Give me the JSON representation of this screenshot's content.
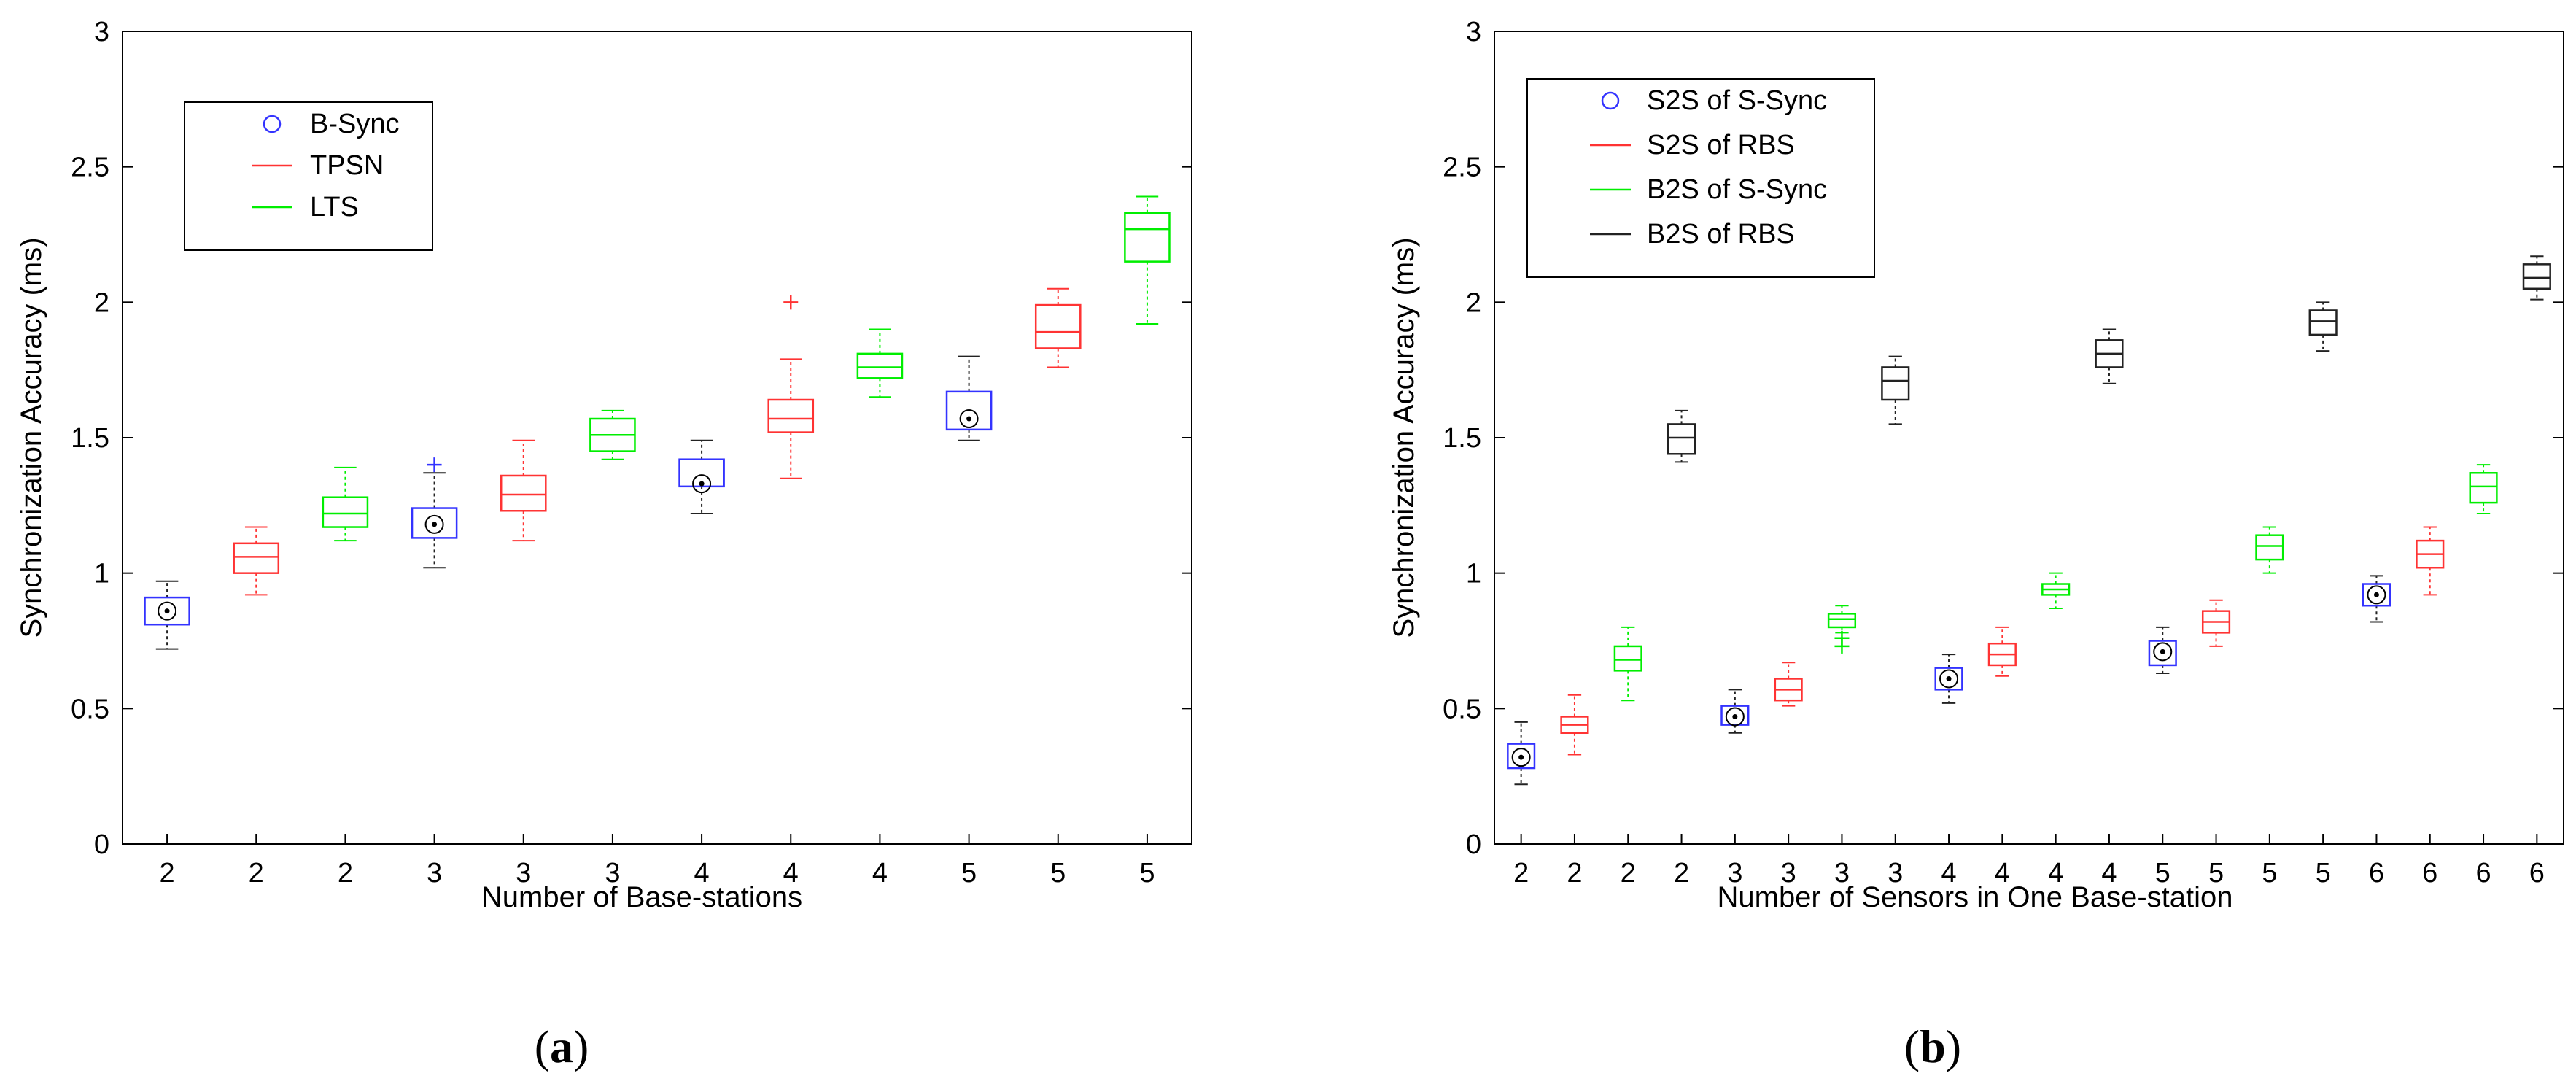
{
  "chart_data": [
    {
      "type": "boxplot",
      "caption_letter": "a",
      "xlabel": "Number of Base-stations",
      "ylabel": "Synchronization Accuracy (ms)",
      "ylim": [
        0,
        3
      ],
      "yticks": [
        0,
        0.5,
        1,
        1.5,
        2,
        2.5,
        3
      ],
      "ytick_labels": [
        "0",
        "0.5",
        "1",
        "1.5",
        "2",
        "2.5",
        "3"
      ],
      "categories": [
        "2",
        "2",
        "2",
        "3",
        "3",
        "3",
        "4",
        "4",
        "4",
        "5",
        "5",
        "5"
      ],
      "legend": [
        {
          "label": "B-Sync",
          "symbol": "circle",
          "color": "#3333ff"
        },
        {
          "label": "TPSN",
          "symbol": "line",
          "color": "#ff3333"
        },
        {
          "label": "LTS",
          "symbol": "line",
          "color": "#00ee00"
        }
      ],
      "boxes": [
        {
          "series": "B-Sync",
          "color": "#3333ff",
          "whisker_color": "#222222",
          "lo": 0.72,
          "q1": 0.81,
          "median": 0.86,
          "q3": 0.91,
          "hi": 0.97,
          "mean_marker": true,
          "outliers": []
        },
        {
          "series": "TPSN",
          "color": "#ff3333",
          "whisker_color": "#ff3333",
          "lo": 0.92,
          "q1": 1.0,
          "median": 1.06,
          "q3": 1.11,
          "hi": 1.17,
          "mean_marker": false,
          "outliers": []
        },
        {
          "series": "LTS",
          "color": "#00ee00",
          "whisker_color": "#00ee00",
          "lo": 1.12,
          "q1": 1.17,
          "median": 1.22,
          "q3": 1.28,
          "hi": 1.39,
          "mean_marker": false,
          "outliers": []
        },
        {
          "series": "B-Sync",
          "color": "#3333ff",
          "whisker_color": "#222222",
          "lo": 1.02,
          "q1": 1.13,
          "median": 1.18,
          "q3": 1.24,
          "hi": 1.37,
          "mean_marker": true,
          "outliers": [
            1.4
          ]
        },
        {
          "series": "TPSN",
          "color": "#ff3333",
          "whisker_color": "#ff3333",
          "lo": 1.12,
          "q1": 1.23,
          "median": 1.29,
          "q3": 1.36,
          "hi": 1.49,
          "mean_marker": false,
          "outliers": []
        },
        {
          "series": "LTS",
          "color": "#00ee00",
          "whisker_color": "#00ee00",
          "lo": 1.42,
          "q1": 1.45,
          "median": 1.51,
          "q3": 1.57,
          "hi": 1.6,
          "mean_marker": false,
          "outliers": []
        },
        {
          "series": "B-Sync",
          "color": "#3333ff",
          "whisker_color": "#222222",
          "lo": 1.22,
          "q1": 1.32,
          "median": 1.33,
          "q3": 1.42,
          "hi": 1.49,
          "mean_marker": true,
          "outliers": []
        },
        {
          "series": "TPSN",
          "color": "#ff3333",
          "whisker_color": "#ff3333",
          "lo": 1.35,
          "q1": 1.52,
          "median": 1.57,
          "q3": 1.64,
          "hi": 1.79,
          "mean_marker": false,
          "outliers": [
            2.0
          ]
        },
        {
          "series": "LTS",
          "color": "#00ee00",
          "whisker_color": "#00ee00",
          "lo": 1.65,
          "q1": 1.72,
          "median": 1.76,
          "q3": 1.81,
          "hi": 1.9,
          "mean_marker": false,
          "outliers": []
        },
        {
          "series": "B-Sync",
          "color": "#3333ff",
          "whisker_color": "#222222",
          "lo": 1.49,
          "q1": 1.53,
          "median": 1.57,
          "q3": 1.67,
          "hi": 1.8,
          "mean_marker": true,
          "outliers": []
        },
        {
          "series": "TPSN",
          "color": "#ff3333",
          "whisker_color": "#ff3333",
          "lo": 1.76,
          "q1": 1.83,
          "median": 1.89,
          "q3": 1.99,
          "hi": 2.05,
          "mean_marker": false,
          "outliers": []
        },
        {
          "series": "LTS",
          "color": "#00ee00",
          "whisker_color": "#00ee00",
          "lo": 1.92,
          "q1": 2.15,
          "median": 2.27,
          "q3": 2.33,
          "hi": 2.39,
          "mean_marker": false,
          "outliers": []
        }
      ]
    },
    {
      "type": "boxplot",
      "caption_letter": "b",
      "xlabel": "Number of Sensors in One Base-station",
      "ylabel": "Synchronization Accuracy (ms)",
      "ylim": [
        0,
        3
      ],
      "yticks": [
        0,
        0.5,
        1,
        1.5,
        2,
        2.5,
        3
      ],
      "ytick_labels": [
        "0",
        "0.5",
        "1",
        "1.5",
        "2",
        "2.5",
        "3"
      ],
      "categories": [
        "2",
        "2",
        "2",
        "2",
        "3",
        "3",
        "3",
        "3",
        "4",
        "4",
        "4",
        "4",
        "5",
        "5",
        "5",
        "5",
        "6",
        "6",
        "6",
        "6"
      ],
      "legend": [
        {
          "label": "S2S of S-Sync",
          "symbol": "circle",
          "color": "#3333ff"
        },
        {
          "label": "S2S of RBS",
          "symbol": "line",
          "color": "#ff3333"
        },
        {
          "label": "B2S of S-Sync",
          "symbol": "line",
          "color": "#00ee00"
        },
        {
          "label": "B2S of RBS",
          "symbol": "line",
          "color": "#222222"
        }
      ],
      "boxes": [
        {
          "series": "S2S of S-Sync",
          "color": "#3333ff",
          "whisker_color": "#222222",
          "lo": 0.22,
          "q1": 0.28,
          "median": 0.32,
          "q3": 0.37,
          "hi": 0.45,
          "mean_marker": true,
          "outliers": []
        },
        {
          "series": "S2S of RBS",
          "color": "#ff3333",
          "whisker_color": "#ff3333",
          "lo": 0.33,
          "q1": 0.41,
          "median": 0.44,
          "q3": 0.47,
          "hi": 0.55,
          "mean_marker": false,
          "outliers": []
        },
        {
          "series": "B2S of S-Sync",
          "color": "#00ee00",
          "whisker_color": "#00ee00",
          "lo": 0.53,
          "q1": 0.64,
          "median": 0.68,
          "q3": 0.73,
          "hi": 0.8,
          "mean_marker": false,
          "outliers": []
        },
        {
          "series": "B2S of RBS",
          "color": "#222222",
          "whisker_color": "#222222",
          "lo": 1.41,
          "q1": 1.44,
          "median": 1.5,
          "q3": 1.55,
          "hi": 1.6,
          "mean_marker": false,
          "outliers": []
        },
        {
          "series": "S2S of S-Sync",
          "color": "#3333ff",
          "whisker_color": "#222222",
          "lo": 0.41,
          "q1": 0.44,
          "median": 0.47,
          "q3": 0.51,
          "hi": 0.57,
          "mean_marker": true,
          "outliers": []
        },
        {
          "series": "S2S of RBS",
          "color": "#ff3333",
          "whisker_color": "#ff3333",
          "lo": 0.51,
          "q1": 0.53,
          "median": 0.57,
          "q3": 0.61,
          "hi": 0.67,
          "mean_marker": false,
          "outliers": []
        },
        {
          "series": "B2S of S-Sync",
          "color": "#00ee00",
          "whisker_color": "#00ee00",
          "lo": 0.78,
          "q1": 0.8,
          "median": 0.83,
          "q3": 0.85,
          "hi": 0.88,
          "mean_marker": false,
          "outliers": [
            0.76,
            0.73
          ]
        },
        {
          "series": "B2S of RBS",
          "color": "#222222",
          "whisker_color": "#222222",
          "lo": 1.55,
          "q1": 1.64,
          "median": 1.71,
          "q3": 1.76,
          "hi": 1.8,
          "mean_marker": false,
          "outliers": []
        },
        {
          "series": "S2S of S-Sync",
          "color": "#3333ff",
          "whisker_color": "#222222",
          "lo": 0.52,
          "q1": 0.57,
          "median": 0.61,
          "q3": 0.65,
          "hi": 0.7,
          "mean_marker": true,
          "outliers": []
        },
        {
          "series": "S2S of RBS",
          "color": "#ff3333",
          "whisker_color": "#ff3333",
          "lo": 0.62,
          "q1": 0.66,
          "median": 0.7,
          "q3": 0.74,
          "hi": 0.8,
          "mean_marker": false,
          "outliers": []
        },
        {
          "series": "B2S of S-Sync",
          "color": "#00ee00",
          "whisker_color": "#00ee00",
          "lo": 0.87,
          "q1": 0.92,
          "median": 0.94,
          "q3": 0.96,
          "hi": 1.0,
          "mean_marker": false,
          "outliers": []
        },
        {
          "series": "B2S of RBS",
          "color": "#222222",
          "whisker_color": "#222222",
          "lo": 1.7,
          "q1": 1.76,
          "median": 1.81,
          "q3": 1.86,
          "hi": 1.9,
          "mean_marker": false,
          "outliers": []
        },
        {
          "series": "S2S of S-Sync",
          "color": "#3333ff",
          "whisker_color": "#222222",
          "lo": 0.63,
          "q1": 0.66,
          "median": 0.71,
          "q3": 0.75,
          "hi": 0.8,
          "mean_marker": true,
          "outliers": []
        },
        {
          "series": "S2S of RBS",
          "color": "#ff3333",
          "whisker_color": "#ff3333",
          "lo": 0.73,
          "q1": 0.78,
          "median": 0.82,
          "q3": 0.86,
          "hi": 0.9,
          "mean_marker": false,
          "outliers": []
        },
        {
          "series": "B2S of S-Sync",
          "color": "#00ee00",
          "whisker_color": "#00ee00",
          "lo": 1.0,
          "q1": 1.05,
          "median": 1.1,
          "q3": 1.14,
          "hi": 1.17,
          "mean_marker": false,
          "outliers": []
        },
        {
          "series": "B2S of RBS",
          "color": "#222222",
          "whisker_color": "#222222",
          "lo": 1.82,
          "q1": 1.88,
          "median": 1.93,
          "q3": 1.97,
          "hi": 2.0,
          "mean_marker": false,
          "outliers": []
        },
        {
          "series": "S2S of S-Sync",
          "color": "#3333ff",
          "whisker_color": "#222222",
          "lo": 0.82,
          "q1": 0.88,
          "median": 0.92,
          "q3": 0.96,
          "hi": 0.99,
          "mean_marker": true,
          "outliers": []
        },
        {
          "series": "S2S of RBS",
          "color": "#ff3333",
          "whisker_color": "#ff3333",
          "lo": 0.92,
          "q1": 1.02,
          "median": 1.07,
          "q3": 1.12,
          "hi": 1.17,
          "mean_marker": false,
          "outliers": []
        },
        {
          "series": "B2S of S-Sync",
          "color": "#00ee00",
          "whisker_color": "#00ee00",
          "lo": 1.22,
          "q1": 1.26,
          "median": 1.32,
          "q3": 1.37,
          "hi": 1.4,
          "mean_marker": false,
          "outliers": []
        },
        {
          "series": "B2S of RBS",
          "color": "#222222",
          "whisker_color": "#222222",
          "lo": 2.01,
          "q1": 2.05,
          "median": 2.09,
          "q3": 2.14,
          "hi": 2.17,
          "mean_marker": false,
          "outliers": []
        }
      ]
    }
  ]
}
